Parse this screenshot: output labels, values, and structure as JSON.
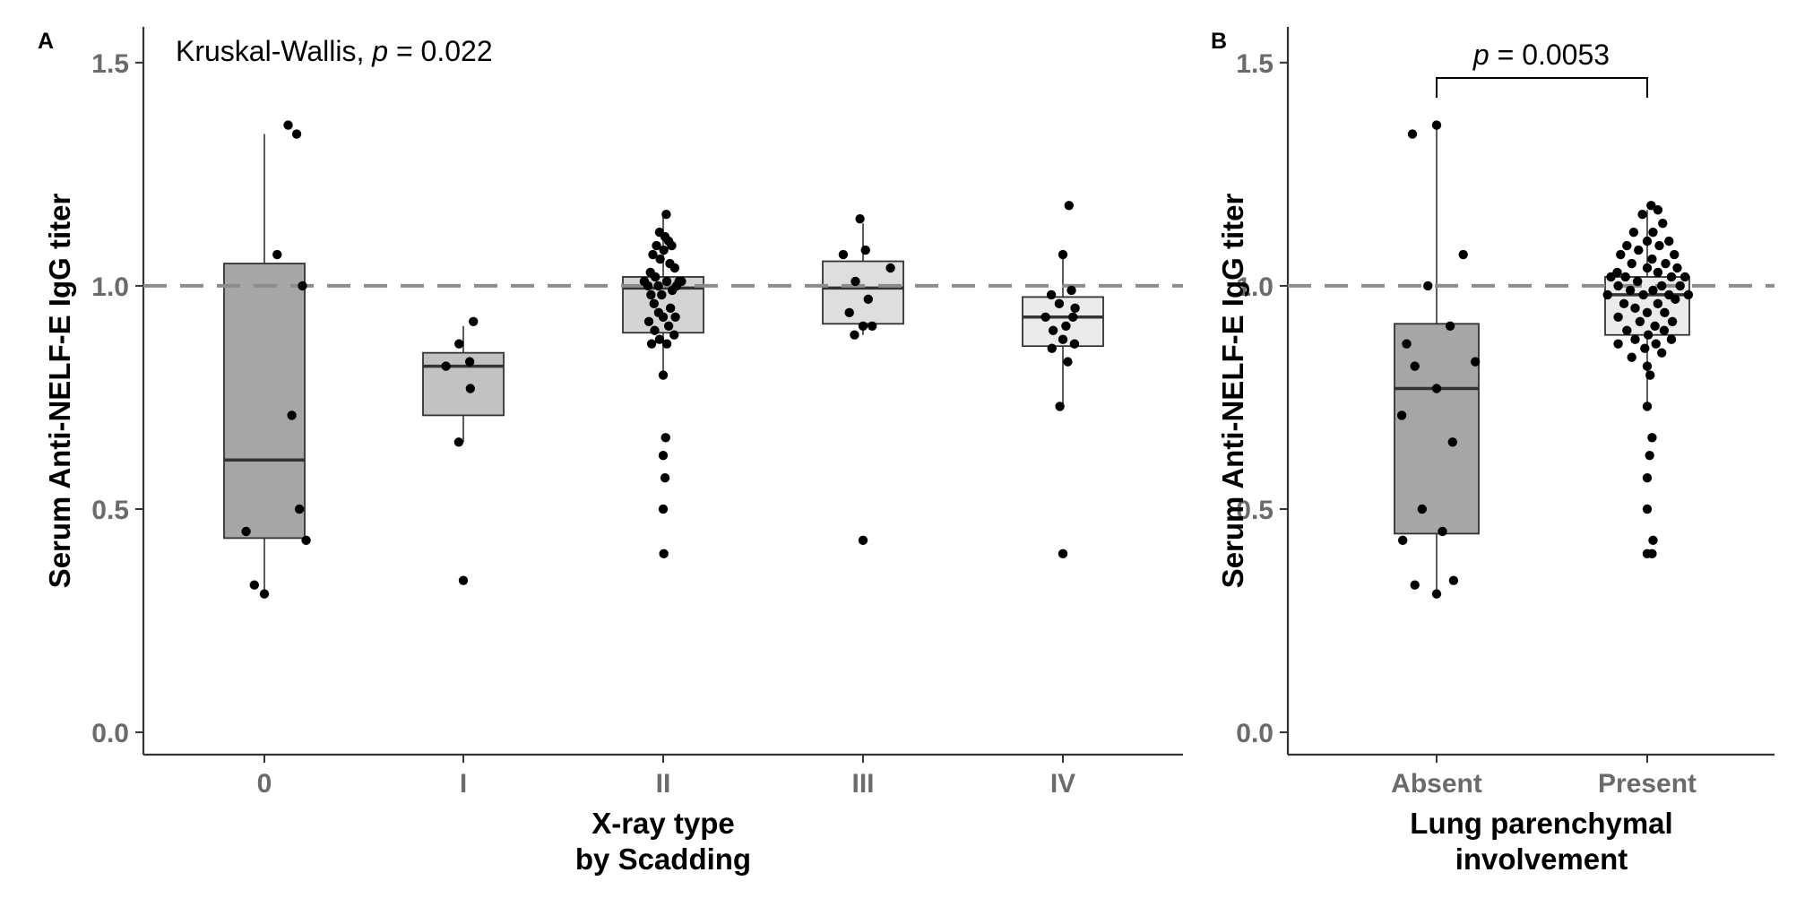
{
  "chart_data": [
    {
      "panel": "A",
      "type": "box",
      "title": "",
      "annotation": {
        "test": "Kruskal-Wallis,",
        "p_symbol": "p",
        "p_text": "= 0.022"
      },
      "xlabel": [
        "X-ray type",
        "by Scadding"
      ],
      "ylabel": "Serum Anti-NELF-E IgG titer",
      "ylim": [
        -0.05,
        1.58
      ],
      "yticks": [
        0.0,
        0.5,
        1.0,
        1.5
      ],
      "ytick_labels": [
        "0.0",
        "0.5",
        "1.0",
        "1.5"
      ],
      "reference_line": 1.0,
      "groups": [
        {
          "label": "0",
          "fill": "#a6a6a6",
          "box": {
            "q1": 0.435,
            "median": 0.61,
            "q3": 1.05,
            "whisker_low": 0.31,
            "whisker_high": 1.34
          },
          "points": [
            [
              0.78,
              1.36
            ],
            [
              1.06,
              1.34
            ],
            [
              0.42,
              1.07
            ],
            [
              1.25,
              1.0
            ],
            [
              0.9,
              0.71
            ],
            [
              1.15,
              0.5
            ],
            [
              -0.6,
              0.45
            ],
            [
              1.37,
              0.43
            ],
            [
              -0.33,
              0.33
            ],
            [
              0.0,
              0.31
            ]
          ]
        },
        {
          "label": "I",
          "fill": "#c2c2c2",
          "box": {
            "q1": 0.71,
            "median": 0.82,
            "q3": 0.85,
            "whisker_low": 0.65,
            "whisker_high": 0.91
          },
          "points": [
            [
              -0.57,
              0.82
            ],
            [
              -0.14,
              0.87
            ],
            [
              0.33,
              0.92
            ],
            [
              0.21,
              0.83
            ],
            [
              0.23,
              0.77
            ],
            [
              -0.15,
              0.65
            ],
            [
              0.0,
              0.34
            ]
          ]
        },
        {
          "label": "II",
          "fill": "#d4d4d4",
          "box": {
            "q1": 0.895,
            "median": 0.995,
            "q3": 1.02,
            "whisker_low": 0.8,
            "whisker_high": 1.16
          },
          "points": [
            [
              0.1,
              1.16
            ],
            [
              -0.12,
              1.12
            ],
            [
              0.06,
              1.11
            ],
            [
              0.18,
              1.1
            ],
            [
              -0.22,
              1.09
            ],
            [
              0.28,
              1.09
            ],
            [
              -0.34,
              1.07
            ],
            [
              0.02,
              1.08
            ],
            [
              -0.1,
              1.06
            ],
            [
              0.22,
              1.05
            ],
            [
              0.38,
              1.04
            ],
            [
              -0.42,
              1.03
            ],
            [
              -0.62,
              1.01
            ],
            [
              0.52,
              1.01
            ],
            [
              -0.5,
              1.0
            ],
            [
              0.6,
              1.01
            ],
            [
              -0.26,
              1.02
            ],
            [
              0.44,
              1.0
            ],
            [
              -0.16,
              1.0
            ],
            [
              0.12,
              1.01
            ],
            [
              -0.4,
              0.98
            ],
            [
              0.3,
              0.99
            ],
            [
              -0.05,
              0.98
            ],
            [
              -0.3,
              0.96
            ],
            [
              0.24,
              0.95
            ],
            [
              -0.15,
              0.94
            ],
            [
              0.4,
              0.93
            ],
            [
              0.0,
              0.93
            ],
            [
              -0.47,
              0.92
            ],
            [
              0.18,
              0.91
            ],
            [
              -0.28,
              0.9
            ],
            [
              0.36,
              0.89
            ],
            [
              -0.12,
              0.88
            ],
            [
              -0.38,
              0.87
            ],
            [
              0.12,
              0.87
            ],
            [
              0.0,
              0.8
            ],
            [
              0.08,
              0.66
            ],
            [
              0.0,
              0.62
            ],
            [
              0.06,
              0.57
            ],
            [
              0.0,
              0.5
            ],
            [
              0.02,
              0.4
            ]
          ]
        },
        {
          "label": "III",
          "fill": "#dedede",
          "box": {
            "q1": 0.915,
            "median": 0.995,
            "q3": 1.055,
            "whisker_low": 0.89,
            "whisker_high": 1.14
          },
          "points": [
            [
              -0.1,
              1.15
            ],
            [
              0.08,
              1.08
            ],
            [
              0.9,
              1.04
            ],
            [
              -0.65,
              1.07
            ],
            [
              -0.25,
              1.01
            ],
            [
              0.17,
              0.97
            ],
            [
              -0.45,
              0.94
            ],
            [
              0.0,
              0.91
            ],
            [
              0.3,
              0.91
            ],
            [
              -0.28,
              0.89
            ],
            [
              0.0,
              0.43
            ]
          ]
        },
        {
          "label": "IV",
          "fill": "#ebebeb",
          "box": {
            "q1": 0.865,
            "median": 0.93,
            "q3": 0.975,
            "whisker_low": 0.73,
            "whisker_high": 1.07
          },
          "points": [
            [
              0.2,
              1.18
            ],
            [
              0.0,
              1.07
            ],
            [
              0.28,
              0.99
            ],
            [
              -0.38,
              0.98
            ],
            [
              -0.12,
              0.96
            ],
            [
              0.4,
              0.95
            ],
            [
              0.33,
              0.93
            ],
            [
              -0.57,
              0.93
            ],
            [
              0.1,
              0.91
            ],
            [
              -0.32,
              0.9
            ],
            [
              0.0,
              0.88
            ],
            [
              0.38,
              0.87
            ],
            [
              -0.36,
              0.86
            ],
            [
              0.16,
              0.83
            ],
            [
              -0.1,
              0.73
            ],
            [
              0.0,
              0.4
            ]
          ]
        }
      ]
    },
    {
      "panel": "B",
      "type": "box",
      "title": "",
      "annotation": {
        "p_symbol": "p",
        "p_text": "= 0.0053"
      },
      "xlabel": [
        "Lung parenchymal",
        "involvement"
      ],
      "ylabel": "Serum Anti-NELF-E IgG titer",
      "ylim": [
        -0.05,
        1.58
      ],
      "yticks": [
        0.0,
        0.5,
        1.0,
        1.5
      ],
      "ytick_labels": [
        "0.0",
        "0.5",
        "1.0",
        "1.5"
      ],
      "reference_line": 1.0,
      "groups": [
        {
          "label": "Absent",
          "fill": "#a6a6a6",
          "box": {
            "q1": 0.445,
            "median": 0.77,
            "q3": 0.915,
            "whisker_low": 0.31,
            "whisker_high": 1.36
          },
          "points": [
            [
              0.0,
              1.36
            ],
            [
              -0.5,
              1.34
            ],
            [
              0.55,
              1.07
            ],
            [
              -0.18,
              1.0
            ],
            [
              0.28,
              0.91
            ],
            [
              -0.62,
              0.87
            ],
            [
              0.8,
              0.83
            ],
            [
              -0.45,
              0.82
            ],
            [
              0.0,
              0.77
            ],
            [
              -0.72,
              0.71
            ],
            [
              0.33,
              0.65
            ],
            [
              -0.3,
              0.5
            ],
            [
              0.12,
              0.45
            ],
            [
              -0.7,
              0.43
            ],
            [
              0.35,
              0.34
            ],
            [
              -0.45,
              0.33
            ],
            [
              0.0,
              0.31
            ]
          ]
        },
        {
          "label": "Present",
          "fill": "#ebebeb",
          "box": {
            "q1": 0.89,
            "median": 0.98,
            "q3": 1.02,
            "whisker_low": 0.73,
            "whisker_high": 1.17
          },
          "points": [
            [
              0.08,
              1.18
            ],
            [
              0.22,
              1.17
            ],
            [
              -0.1,
              1.16
            ],
            [
              0.32,
              1.14
            ],
            [
              -0.28,
              1.12
            ],
            [
              0.12,
              1.12
            ],
            [
              0.45,
              1.1
            ],
            [
              -0.42,
              1.09
            ],
            [
              0.0,
              1.1
            ],
            [
              0.25,
              1.09
            ],
            [
              -0.18,
              1.08
            ],
            [
              0.56,
              1.07
            ],
            [
              -0.55,
              1.07
            ],
            [
              0.1,
              1.06
            ],
            [
              -0.32,
              1.05
            ],
            [
              0.38,
              1.05
            ],
            [
              0.62,
              1.04
            ],
            [
              -0.62,
              1.03
            ],
            [
              0.0,
              1.04
            ],
            [
              0.22,
              1.03
            ],
            [
              0.78,
              1.02
            ],
            [
              -0.75,
              1.02
            ],
            [
              -0.45,
              1.02
            ],
            [
              0.5,
              1.02
            ],
            [
              -0.2,
              1.01
            ],
            [
              0.3,
              1.0
            ],
            [
              -0.6,
              1.0
            ],
            [
              0.68,
              1.0
            ],
            [
              0.12,
              0.99
            ],
            [
              -0.35,
              0.99
            ],
            [
              -0.82,
              0.98
            ],
            [
              0.85,
              0.98
            ],
            [
              0.45,
              0.98
            ],
            [
              -0.08,
              0.98
            ],
            [
              0.58,
              0.97
            ],
            [
              -0.48,
              0.96
            ],
            [
              0.22,
              0.96
            ],
            [
              -0.25,
              0.95
            ],
            [
              0.36,
              0.94
            ],
            [
              0.0,
              0.94
            ],
            [
              -0.6,
              0.93
            ],
            [
              0.52,
              0.92
            ],
            [
              -0.15,
              0.92
            ],
            [
              0.16,
              0.91
            ],
            [
              -0.42,
              0.9
            ],
            [
              0.35,
              0.9
            ],
            [
              0.02,
              0.89
            ],
            [
              -0.25,
              0.88
            ],
            [
              0.5,
              0.88
            ],
            [
              -0.6,
              0.87
            ],
            [
              0.18,
              0.87
            ],
            [
              -0.05,
              0.86
            ],
            [
              0.3,
              0.85
            ],
            [
              -0.32,
              0.84
            ],
            [
              0.0,
              0.82
            ],
            [
              0.06,
              0.8
            ],
            [
              0.0,
              0.73
            ],
            [
              0.1,
              0.66
            ],
            [
              0.05,
              0.62
            ],
            [
              0.0,
              0.57
            ],
            [
              0.0,
              0.5
            ],
            [
              0.12,
              0.43
            ],
            [
              0.0,
              0.4
            ],
            [
              0.1,
              0.4
            ]
          ]
        }
      ]
    }
  ],
  "panel_labels": {
    "a": "A",
    "b": "B"
  },
  "colors": {
    "point": "#000000",
    "dashed_line": "#8c8c8c",
    "axis": "#333333",
    "tick_label": "#6b6b6b"
  }
}
